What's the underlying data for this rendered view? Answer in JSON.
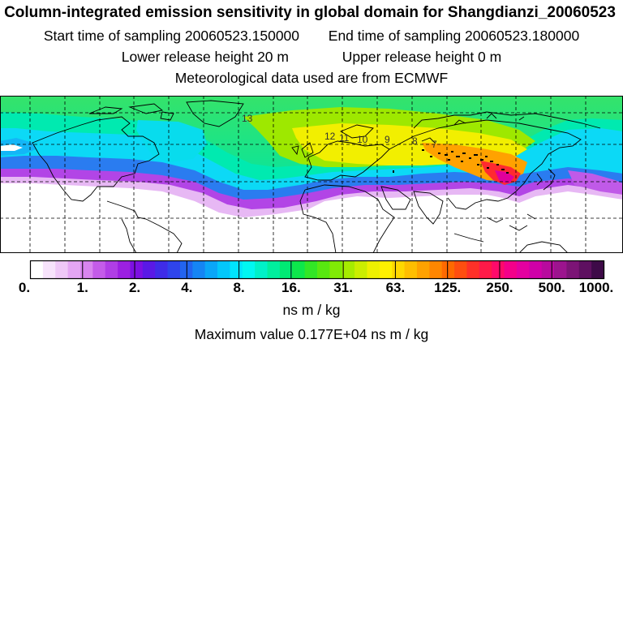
{
  "title": "Column-integrated emission sensitivity in global domain for Shangdianzi_20060523",
  "start_label": "Start time of sampling 20060523.150000",
  "end_label": "End time of sampling 20060523.180000",
  "lower_label": "Lower release height   20 m",
  "upper_label": "Upper release height    0 m",
  "met_label": "Meteorological data used are from ECMWF",
  "unit_label": "ns m / kg",
  "max_label": "Maximum value  0.177E+04 ns m / kg",
  "colorbar": {
    "ticks": [
      "0.",
      "1.",
      "2.",
      "4.",
      "8.",
      "16.",
      "31.",
      "63.",
      "125.",
      "250.",
      "500.",
      "1000."
    ],
    "colors": [
      "#ffffff",
      "#f7e3fb",
      "#efc8f7",
      "#e4a6f3",
      "#d885ef",
      "#c45ce9",
      "#b03ee5",
      "#9c20e1",
      "#7d10e3",
      "#5a19e6",
      "#3f2ce8",
      "#2f44ec",
      "#2264f0",
      "#1585f4",
      "#0aa6f8",
      "#03c7fb",
      "#00e3fd",
      "#00f7f2",
      "#00f1c8",
      "#00ee9e",
      "#00ea74",
      "#0de64b",
      "#32e626",
      "#58e810",
      "#80ea05",
      "#a6ec00",
      "#cbee00",
      "#eef000",
      "#fff000",
      "#ffd800",
      "#ffbe00",
      "#ffa200",
      "#ff8600",
      "#ff6a00",
      "#ff4e10",
      "#ff3128",
      "#ff1a48",
      "#ff0a6a",
      "#f4008a",
      "#e400a0",
      "#d000a8",
      "#b80a9e",
      "#9c148e",
      "#7c1476",
      "#5e1060",
      "#3e0a48"
    ]
  },
  "contour_labels": [
    "13",
    "12",
    "11",
    "10",
    "9",
    "8",
    "7"
  ],
  "colors": {
    "grid": "#000000",
    "coast": "#000000"
  }
}
